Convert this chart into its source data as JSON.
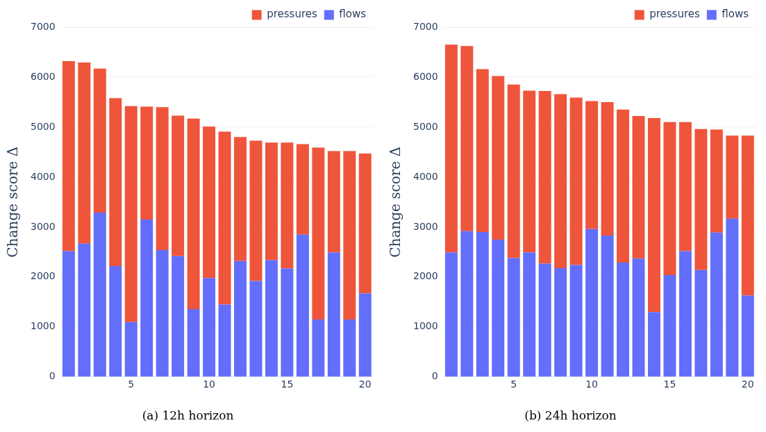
{
  "chart_data": [
    {
      "type": "bar",
      "title": "(a) 12h horizon",
      "ylabel": "Change score Δ",
      "stacked": true,
      "x": [
        1,
        2,
        3,
        4,
        5,
        6,
        7,
        8,
        9,
        10,
        11,
        12,
        13,
        14,
        15,
        16,
        17,
        18,
        19,
        20
      ],
      "xlim": [
        0.5,
        20.5
      ],
      "xticks": [
        5,
        10,
        15,
        20
      ],
      "ylim": [
        0,
        7000
      ],
      "yticks": [
        0,
        1000,
        2000,
        3000,
        4000,
        5000,
        6000,
        7000
      ],
      "grid": "y",
      "legend": "top right",
      "series": [
        {
          "name": "flows",
          "color": "#636efa",
          "values": [
            2520,
            2670,
            3290,
            2220,
            1100,
            3150,
            2540,
            2420,
            1360,
            1980,
            1450,
            2320,
            1920,
            2340,
            2170,
            2850,
            1150,
            2490,
            1150,
            1670
          ]
        },
        {
          "name": "pressures",
          "color": "#ef553b",
          "values": [
            3800,
            3620,
            2880,
            3360,
            4320,
            2260,
            2860,
            2810,
            3810,
            3030,
            3460,
            2480,
            2810,
            2350,
            2520,
            1810,
            3440,
            2030,
            3370,
            2800
          ]
        }
      ]
    },
    {
      "type": "bar",
      "title": "(b) 24h horizon",
      "ylabel": "Change score Δ",
      "stacked": true,
      "x": [
        1,
        2,
        3,
        4,
        5,
        6,
        7,
        8,
        9,
        10,
        11,
        12,
        13,
        14,
        15,
        16,
        17,
        18,
        19,
        20
      ],
      "xlim": [
        0.5,
        20.5
      ],
      "xticks": [
        5,
        10,
        15,
        20
      ],
      "ylim": [
        0,
        7000
      ],
      "yticks": [
        0,
        1000,
        2000,
        3000,
        4000,
        5000,
        6000,
        7000
      ],
      "grid": "y",
      "legend": "top right",
      "series": [
        {
          "name": "flows",
          "color": "#636efa",
          "values": [
            2490,
            2920,
            2900,
            2750,
            2380,
            2490,
            2270,
            2180,
            2240,
            2960,
            2830,
            2290,
            2370,
            1300,
            2040,
            2520,
            2140,
            2890,
            3170,
            1630
          ]
        },
        {
          "name": "pressures",
          "color": "#ef553b",
          "values": [
            4160,
            3700,
            3260,
            3270,
            3470,
            3240,
            3450,
            3480,
            3350,
            2560,
            2670,
            3060,
            2850,
            3880,
            3060,
            2580,
            2820,
            2060,
            1660,
            3200
          ]
        }
      ]
    }
  ]
}
